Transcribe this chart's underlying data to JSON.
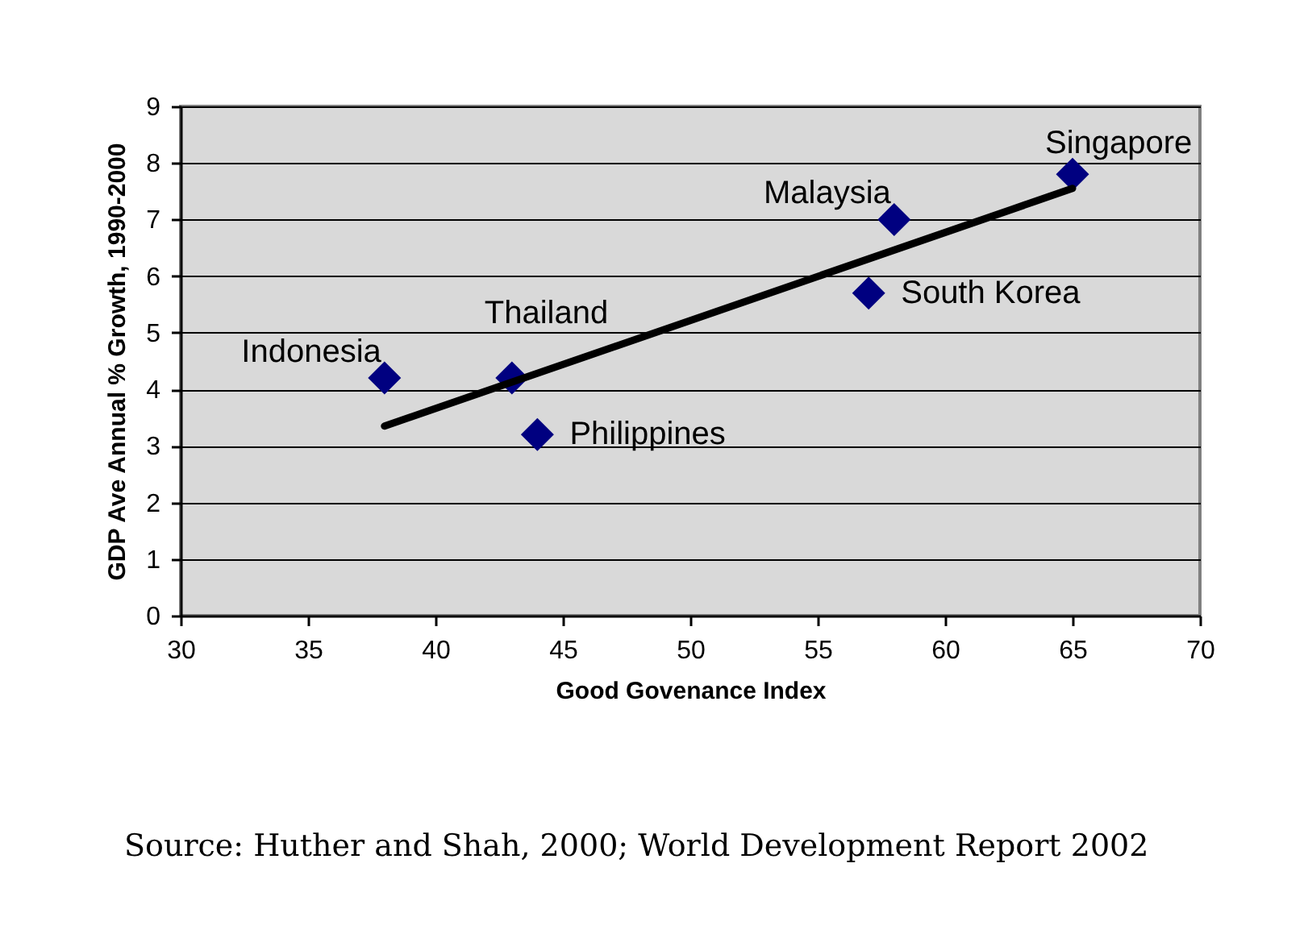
{
  "chart_data": {
    "type": "scatter",
    "xlabel": "Good Govenance Index",
    "ylabel": "GDP Ave Annual % Growth, 1990-2000",
    "xlim": [
      30,
      70
    ],
    "xticks": [
      30,
      35,
      40,
      45,
      50,
      55,
      60,
      65,
      70
    ],
    "ylim": [
      0,
      9
    ],
    "yticks": [
      0,
      1,
      2,
      3,
      4,
      5,
      6,
      7,
      8,
      9
    ],
    "grid": "y",
    "series": [
      {
        "color": "#000080",
        "marker": "diamond",
        "x": [
          38,
          43,
          44,
          57,
          58,
          65
        ],
        "values": [
          4.2,
          4.2,
          3.2,
          5.7,
          7.0,
          7.8
        ]
      },
      {
        "type": "line",
        "color": "#000000",
        "x": [
          38,
          65
        ],
        "values": [
          3.35,
          7.55
        ]
      }
    ],
    "annotations": [
      {
        "text": "Indonesia",
        "x": 38,
        "y": 4.2
      },
      {
        "text": "Thailand",
        "x": 43,
        "y": 4.2
      },
      {
        "text": "Philippines",
        "x": 44,
        "y": 3.2
      },
      {
        "text": "South Korea",
        "x": 57,
        "y": 5.7
      },
      {
        "text": "Malaysia",
        "x": 58,
        "y": 7.0
      },
      {
        "text": "Singapore",
        "x": 65,
        "y": 7.8
      },
      "Source: Huther and Shah, 2000; World Development Report 2002"
    ]
  }
}
